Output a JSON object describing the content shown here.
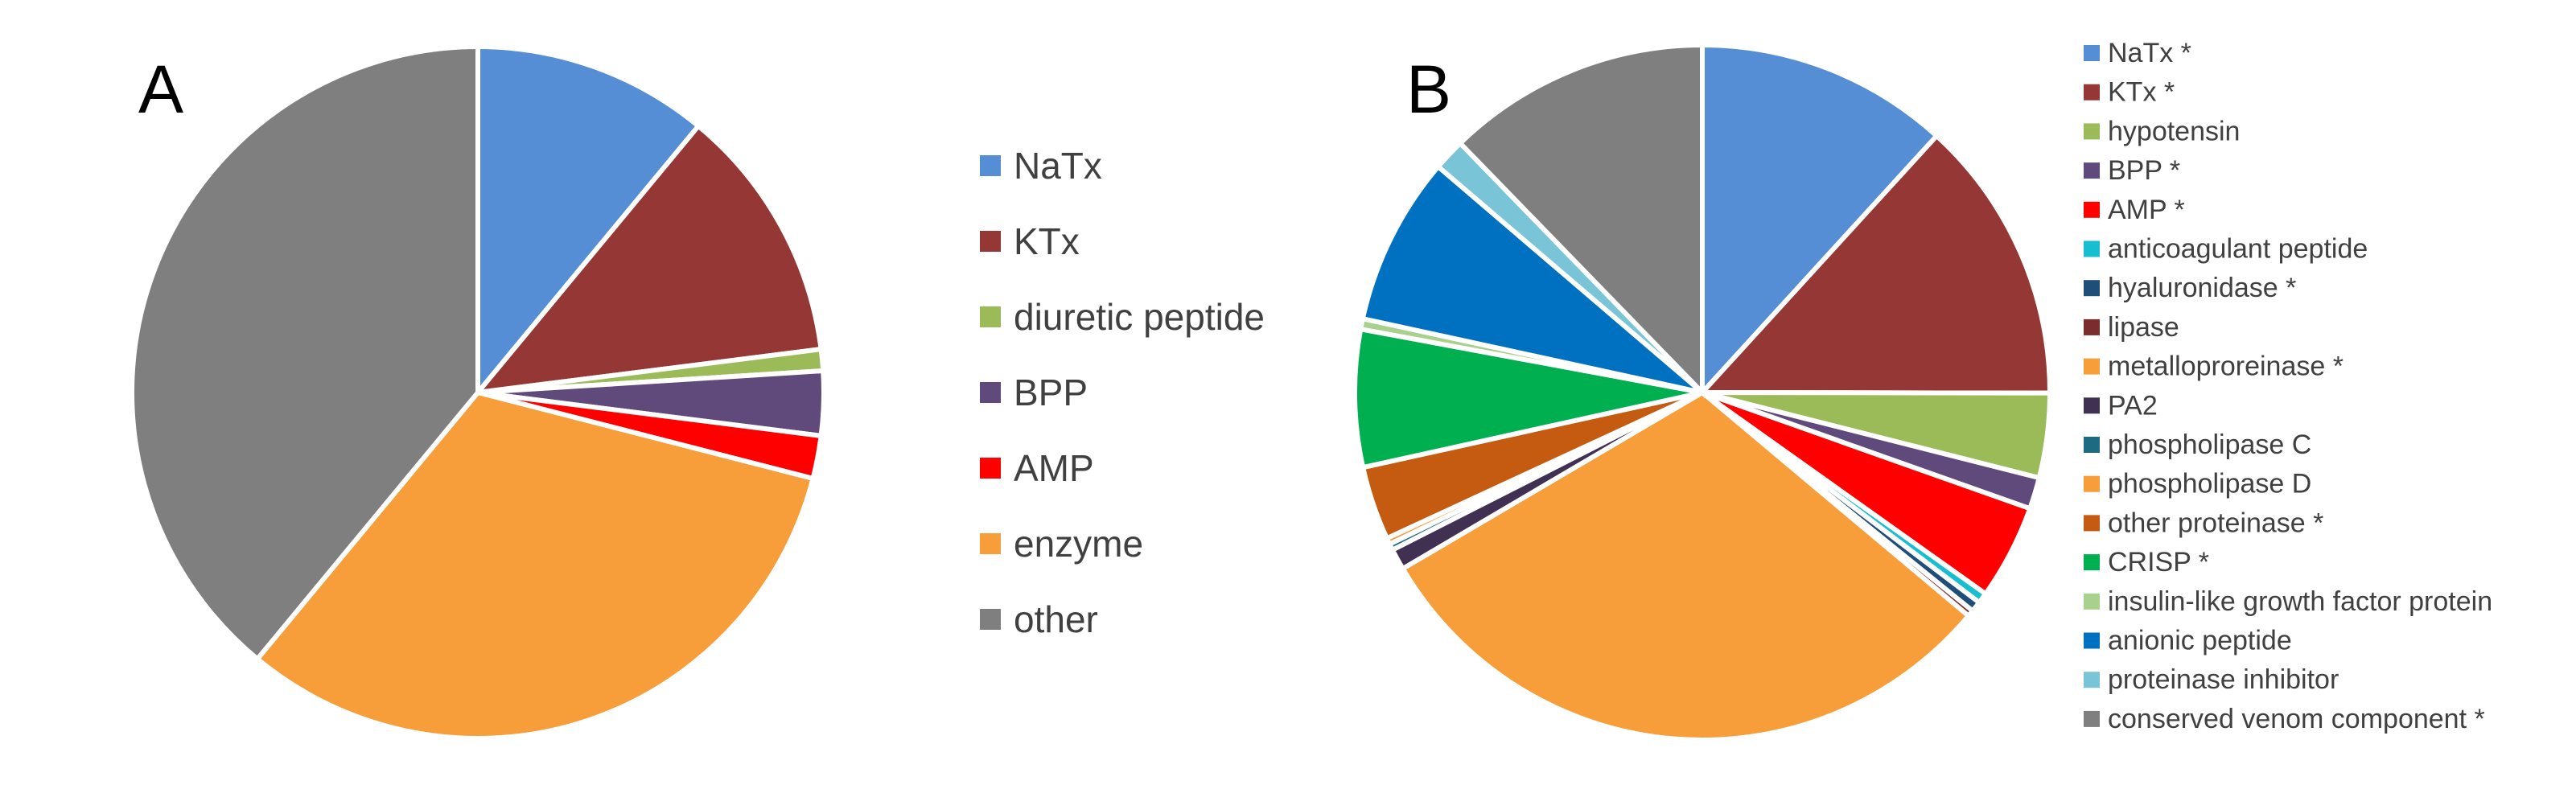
{
  "chart_data": [
    {
      "type": "pie",
      "panel_label": "A",
      "legend_position": "right",
      "slices": [
        {
          "label": "NaTx",
          "value": 11,
          "color": "#558ed5"
        },
        {
          "label": "KTx",
          "value": 12,
          "color": "#953735"
        },
        {
          "label": "diuretic peptide",
          "value": 1,
          "color": "#9bbb59"
        },
        {
          "label": "BPP",
          "value": 3,
          "color": "#604a7b"
        },
        {
          "label": "AMP",
          "value": 2,
          "color": "#ff0000"
        },
        {
          "label": "enzyme",
          "value": 32,
          "color": "#f79d3a"
        },
        {
          "label": "other",
          "value": 39,
          "color": "#7f7f7f"
        }
      ]
    },
    {
      "type": "pie",
      "panel_label": "B",
      "legend_position": "right",
      "slices": [
        {
          "label": "NaTx *",
          "value": 12,
          "color": "#558ed5"
        },
        {
          "label": "KTx *",
          "value": 13.5,
          "color": "#953735"
        },
        {
          "label": "hypotensin",
          "value": 4,
          "color": "#9bbb59"
        },
        {
          "label": "BPP *",
          "value": 1.5,
          "color": "#604a7b"
        },
        {
          "label": "AMP *",
          "value": 4.5,
          "color": "#ff0000"
        },
        {
          "label": "anticoagulant peptide",
          "value": 0.5,
          "color": "#17becf"
        },
        {
          "label": "hyaluronidase *",
          "value": 0.5,
          "color": "#1f4e79"
        },
        {
          "label": "lipase",
          "value": 0.3,
          "color": "#7b2c2c"
        },
        {
          "label": "metalloproreinase *",
          "value": 31,
          "color": "#f79d3a"
        },
        {
          "label": "PA2",
          "value": 1,
          "color": "#403152"
        },
        {
          "label": "phospholipase C",
          "value": 0.3,
          "color": "#1c6b80"
        },
        {
          "label": "phospholipase D",
          "value": 0.3,
          "color": "#f79d3a"
        },
        {
          "label": "other proteinase *",
          "value": 3.5,
          "color": "#c55a11"
        },
        {
          "label": "CRISP *",
          "value": 6.5,
          "color": "#00b050"
        },
        {
          "label": "insulin-like growth factor protein",
          "value": 0.5,
          "color": "#a9d18e"
        },
        {
          "label": "anionic peptide",
          "value": 8,
          "color": "#0070c0"
        },
        {
          "label": "proteinase inhibitor",
          "value": 1.5,
          "color": "#7ac4d8"
        },
        {
          "label": "conserved venom component *",
          "value": 12.5,
          "color": "#7f7f7f"
        }
      ]
    }
  ]
}
